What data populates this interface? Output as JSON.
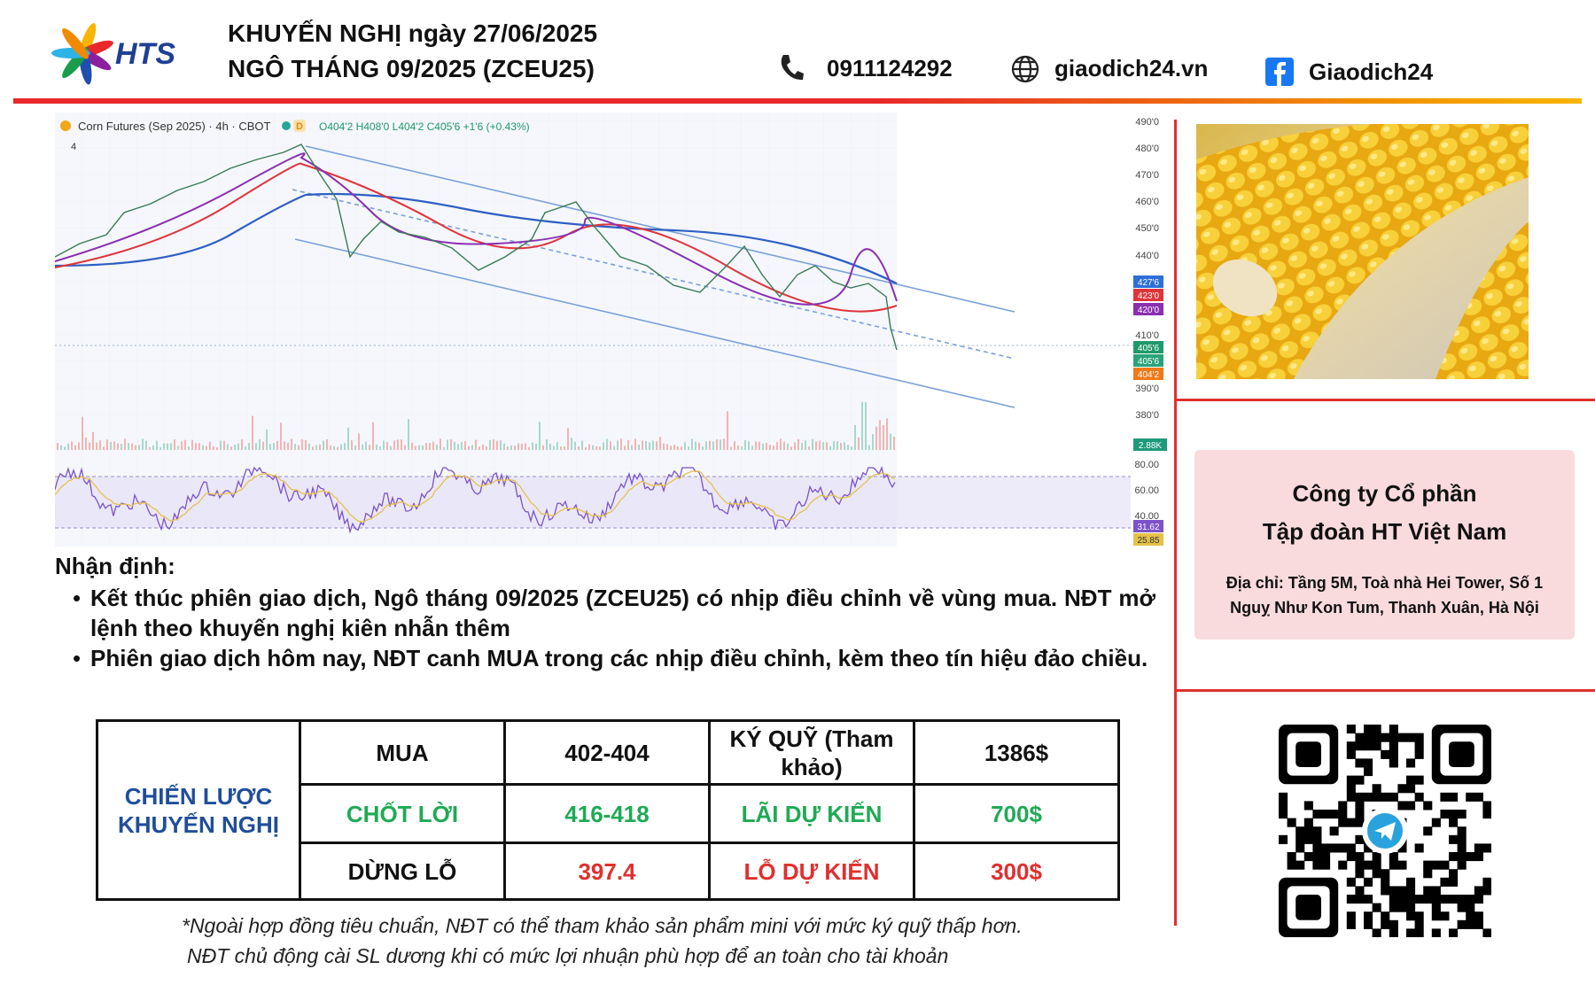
{
  "header": {
    "logo": "HTS",
    "title_line1": "KHUYẾN NGHỊ ngày 27/06/2025",
    "title_line2": "NGÔ THÁNG 09/2025 (ZCEU25)",
    "phone": "0911124292",
    "website": "giaodich24.vn",
    "facebook": "Giaodich24"
  },
  "chart_screenshot": {
    "legend": "Corn Futures (Sep 2025) · 4h · CBOT",
    "badge": "D",
    "ohlc": "O404'2 H408'0 L404'2 C405'6 +1'6 (+0.43%)",
    "indicator_count": "4",
    "price_axis": [
      "490'0",
      "480'0",
      "470'0",
      "460'0",
      "450'0",
      "440'0",
      "410'0",
      "390'0",
      "380'0"
    ],
    "price_tags": [
      "427'6",
      "423'0",
      "420'0",
      "405'6",
      "405'6",
      "404'2"
    ],
    "volume_tag": "2.88K",
    "rsi_axis": [
      "80.00",
      "60.00",
      "40.00"
    ],
    "rsi_tags": [
      "31.62",
      "25.85"
    ]
  },
  "analysis": {
    "heading": "Nhận định:",
    "bullets": [
      "Kết thúc phiên giao dịch, Ngô tháng 09/2025 (ZCEU25) có nhịp điều chỉnh về vùng mua. NĐT mở lệnh theo khuyến nghị kiên nhẫn thêm",
      "Phiên giao dịch hôm nay, NĐT canh MUA trong các nhịp điều chỉnh, kèm theo tín hiệu đảo chiều."
    ]
  },
  "strategy_table": {
    "label": "CHIẾN LƯỢC KHUYẾN NGHỊ",
    "rows": [
      [
        "MUA",
        "402-404",
        "KÝ QUỸ (Tham khảo)",
        "1386$"
      ],
      [
        "CHỐT LỜI",
        "416-418",
        "LÃI DỰ KIẾN",
        "700$"
      ],
      [
        "DỪNG LỖ",
        "397.4",
        "LỖ DỰ KIẾN",
        "300$"
      ]
    ]
  },
  "footnote": [
    "*Ngoài hợp đồng tiêu chuẩn, NĐT có thể tham khảo sản phẩm mini với mức ký quỹ thấp hơn.",
    "NĐT chủ động cài SL dương khi có mức lợi nhuận phù hợp để an toàn cho tài khoản"
  ],
  "company": {
    "name_line1": "Công ty Cổ phần",
    "name_line2": "Tập đoàn HT Việt Nam",
    "address": "Địa chỉ: Tầng 5M, Toà nhà Hei Tower, Số 1 Nguỵ Như Kon Tum, Thanh Xuân, Hà Nội"
  }
}
